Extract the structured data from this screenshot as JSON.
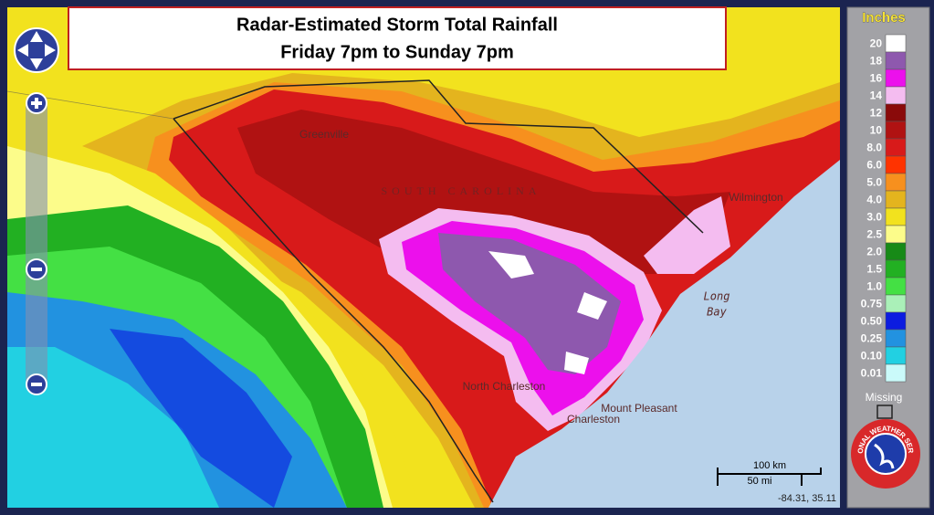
{
  "title": {
    "line1": "Radar-Estimated Storm Total Rainfall",
    "line2": "Friday 7pm to Sunday 7pm"
  },
  "legend": {
    "title": "Inches",
    "missing": "Missing",
    "items": [
      {
        "label": "20",
        "color": "#ffffff"
      },
      {
        "label": "18",
        "color": "#8e58ae"
      },
      {
        "label": "16",
        "color": "#ec10ec"
      },
      {
        "label": "14",
        "color": "#f4bcf0"
      },
      {
        "label": "12",
        "color": "#8a0a0a"
      },
      {
        "label": "10",
        "color": "#b01212"
      },
      {
        "label": "8.0",
        "color": "#d81a1a"
      },
      {
        "label": "6.0",
        "color": "#ff3300"
      },
      {
        "label": "5.0",
        "color": "#f7901e"
      },
      {
        "label": "4.0",
        "color": "#e4b41e"
      },
      {
        "label": "3.0",
        "color": "#f2e21e"
      },
      {
        "label": "2.5",
        "color": "#fcfc8a"
      },
      {
        "label": "2.0",
        "color": "#178a17"
      },
      {
        "label": "1.5",
        "color": "#22b022"
      },
      {
        "label": "1.0",
        "color": "#44e044"
      },
      {
        "label": "0.75",
        "color": "#aaf0b8"
      },
      {
        "label": "0.50",
        "color": "#0c1ce0"
      },
      {
        "label": "0.25",
        "color": "#2292e0"
      },
      {
        "label": "0.10",
        "color": "#22d0e2"
      },
      {
        "label": "0.01",
        "color": "#cafafa"
      }
    ]
  },
  "places": [
    {
      "label": "Greenville"
    },
    {
      "label": "SOUTH CAROLINA"
    },
    {
      "label": "Wilmington"
    },
    {
      "label": "Long"
    },
    {
      "label": "Bay"
    },
    {
      "label": "North Charleston"
    },
    {
      "label": "Mount Pleasant"
    },
    {
      "label": "Charleston"
    }
  ],
  "scale": {
    "km": "100 km",
    "mi": "50 mi"
  },
  "coordinates": "-84.31, 35.11",
  "logo_text": "NATIONAL WEATHER SERVICE"
}
